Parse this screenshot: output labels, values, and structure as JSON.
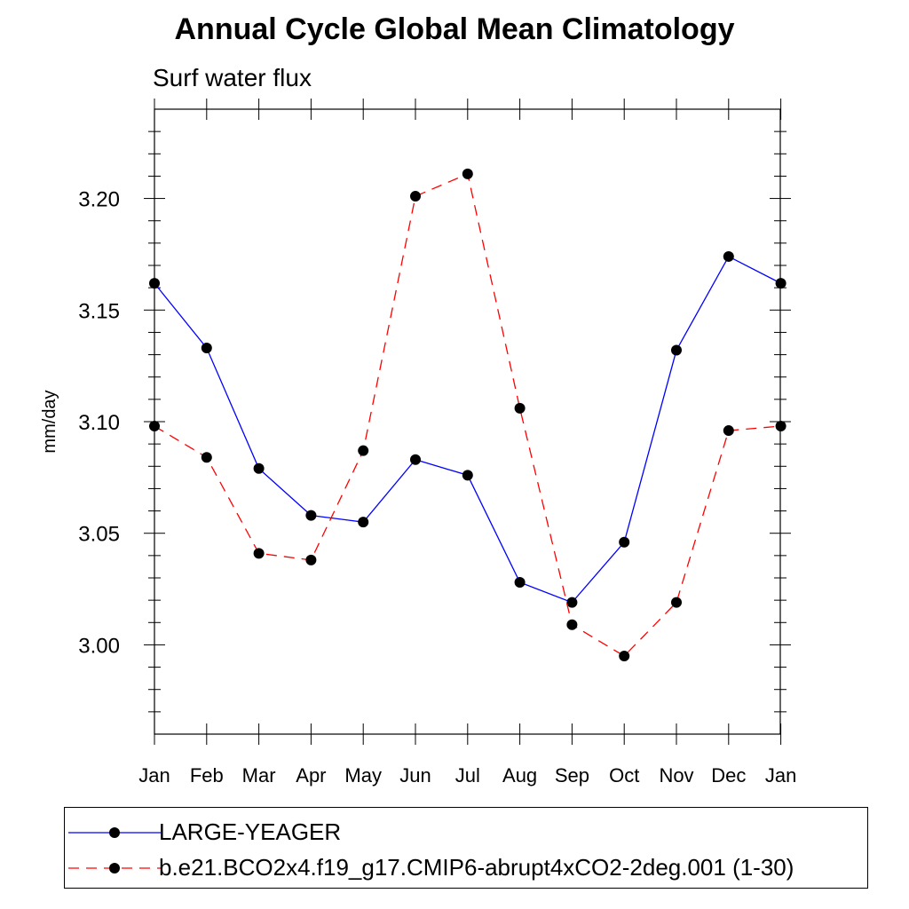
{
  "title": "Annual Cycle Global Mean Climatology",
  "subtitle": "Surf water flux",
  "chart_data": {
    "type": "line",
    "title": "Annual Cycle Global Mean Climatology",
    "subtitle": "Surf water flux",
    "xlabel": "",
    "ylabel": "mm/day",
    "categories": [
      "Jan",
      "Feb",
      "Mar",
      "Apr",
      "May",
      "Jun",
      "Jul",
      "Aug",
      "Sep",
      "Oct",
      "Nov",
      "Dec",
      "Jan"
    ],
    "ylim": [
      2.96,
      3.24
    ],
    "yticks": [
      3.0,
      3.05,
      3.1,
      3.15,
      3.2
    ],
    "ytick_labels": [
      "3.00",
      "3.05",
      "3.10",
      "3.15",
      "3.20"
    ],
    "grid": false,
    "legend_position": "bottom",
    "series": [
      {
        "name": "LARGE-YEAGER",
        "color": "#0000ff",
        "style": "solid",
        "marker": "circle",
        "values": [
          3.162,
          3.133,
          3.079,
          3.058,
          3.055,
          3.083,
          3.076,
          3.028,
          3.019,
          3.046,
          3.132,
          3.174,
          3.162
        ]
      },
      {
        "name": "b.e21.BCO2x4.f19_g17.CMIP6-abrupt4xCO2-2deg.001 (1-30)",
        "color": "#ff0000",
        "style": "dashed",
        "marker": "circle",
        "values": [
          3.098,
          3.084,
          3.041,
          3.038,
          3.087,
          3.201,
          3.211,
          3.106,
          3.009,
          2.995,
          3.019,
          3.096,
          3.098
        ]
      }
    ]
  }
}
